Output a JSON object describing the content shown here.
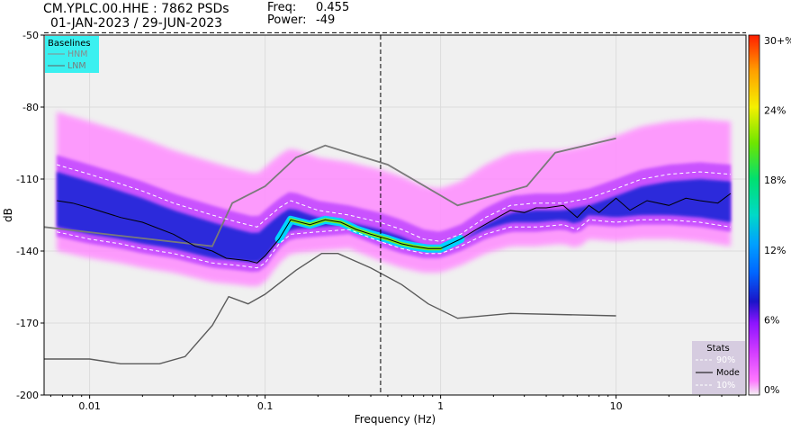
{
  "header": {
    "station_line": "CM.YPLC.00.HHE : 7862 PSDs",
    "date_line": "01-JAN-2023 / 29-JUN-2023",
    "freq_label": "Freq:",
    "freq_value": "0.455",
    "power_label": "Power:",
    "power_value": "-49"
  },
  "baselines_legend": {
    "title": "Baselines",
    "items": [
      "HNM",
      "LNM"
    ]
  },
  "stats_legend": {
    "title": "Stats",
    "items": [
      "90%",
      "Mode",
      "10%"
    ]
  },
  "colorbar": {
    "tick_labels": [
      "30+%",
      "24%",
      "18%",
      "12%",
      "6%",
      "0%"
    ],
    "colors": [
      "#ff1e00",
      "#ffa000",
      "#f5f000",
      "#6ee600",
      "#00d9c8",
      "#0066ff",
      "#1a14c8",
      "#b400ff",
      "#ff78ff",
      "#f2f2f2"
    ]
  },
  "chart_data": {
    "type": "heatmap",
    "title": "CM.YPLC.00.HHE : 7862 PSDs",
    "xlabel": "Frequency (Hz)",
    "ylabel": "dB",
    "x_scale": "log",
    "xlim": [
      0.0055,
      55
    ],
    "ylim": [
      -200,
      -50
    ],
    "x_ticks": [
      0.01,
      0.1,
      1,
      10
    ],
    "x_tick_labels": [
      "0.01",
      "0.1",
      "1",
      "10"
    ],
    "y_ticks": [
      -200,
      -170,
      -140,
      -110,
      -80,
      -50
    ],
    "y_tick_labels": [
      "-200",
      "-170",
      "-140",
      "-110",
      "-80",
      "-50"
    ],
    "grid": true,
    "cursor": {
      "freq": 0.455,
      "power": -49
    },
    "series": [
      {
        "name": "HNM",
        "x": [
          0.0055,
          0.05,
          0.065,
          0.1,
          0.15,
          0.22,
          0.5,
          1.25,
          3.1,
          4.5,
          10
        ],
        "y": [
          -130,
          -138,
          -120,
          -113,
          -101,
          -96,
          -104,
          -121,
          -113,
          -99,
          -93
        ]
      },
      {
        "name": "LNM",
        "x": [
          0.0055,
          0.01,
          0.015,
          0.025,
          0.035,
          0.05,
          0.062,
          0.08,
          0.1,
          0.15,
          0.21,
          0.26,
          0.4,
          0.6,
          0.85,
          1.25,
          2.5,
          10
        ],
        "y": [
          -185,
          -185,
          -187,
          -187,
          -184,
          -171,
          -159,
          -162,
          -158,
          -148,
          -141,
          -141,
          -147,
          -154,
          -162,
          -168,
          -166,
          -167
        ]
      },
      {
        "name": "Mode",
        "x": [
          0.0065,
          0.008,
          0.01,
          0.015,
          0.02,
          0.03,
          0.04,
          0.05,
          0.06,
          0.08,
          0.09,
          0.1,
          0.12,
          0.14,
          0.18,
          0.22,
          0.27,
          0.33,
          0.4,
          0.5,
          0.6,
          0.7,
          0.85,
          1.0,
          1.3,
          1.6,
          2.0,
          2.5,
          3.0,
          3.5,
          4.0,
          5.0,
          6.0,
          7.0,
          8.0,
          10,
          12,
          15,
          20,
          25,
          30,
          38,
          45
        ],
        "y": [
          -119,
          -120,
          -122,
          -126,
          -128,
          -133,
          -138,
          -140,
          -143,
          -144,
          -145,
          -142,
          -135,
          -127,
          -129,
          -127,
          -128,
          -131,
          -133,
          -135,
          -137,
          -138,
          -139,
          -139,
          -135,
          -131,
          -127,
          -123,
          -124,
          -122,
          -122,
          -121,
          -126,
          -121,
          -124,
          -118,
          -123,
          -119,
          -121,
          -118,
          -119,
          -120,
          -116
        ]
      },
      {
        "name": "90%",
        "x": [
          0.0065,
          0.01,
          0.015,
          0.02,
          0.03,
          0.05,
          0.07,
          0.09,
          0.1,
          0.12,
          0.14,
          0.2,
          0.3,
          0.45,
          0.6,
          0.8,
          1.0,
          1.3,
          1.8,
          2.5,
          3.5,
          5.0,
          7.0,
          10,
          14,
          20,
          30,
          45
        ],
        "y": [
          -104,
          -108,
          -112,
          -115,
          -120,
          -125,
          -128,
          -130,
          -127,
          -122,
          -119,
          -123,
          -125,
          -128,
          -131,
          -135,
          -136,
          -133,
          -126,
          -121,
          -120,
          -120,
          -118,
          -114,
          -110,
          -108,
          -107,
          -108
        ]
      },
      {
        "name": "10%",
        "x": [
          0.0065,
          0.01,
          0.015,
          0.02,
          0.03,
          0.05,
          0.07,
          0.09,
          0.1,
          0.12,
          0.14,
          0.2,
          0.3,
          0.45,
          0.6,
          0.8,
          1.0,
          1.3,
          1.8,
          2.5,
          3.5,
          5.0,
          6.0,
          7.0,
          10,
          14,
          20,
          30,
          45
        ],
        "y": [
          -132,
          -135,
          -137,
          -139,
          -141,
          -145,
          -146,
          -147,
          -145,
          -137,
          -133,
          -132,
          -131,
          -136,
          -139,
          -141,
          -141,
          -138,
          -133,
          -130,
          -130,
          -129,
          -131,
          -127,
          -128,
          -127,
          -127,
          -128,
          -130
        ]
      }
    ]
  }
}
